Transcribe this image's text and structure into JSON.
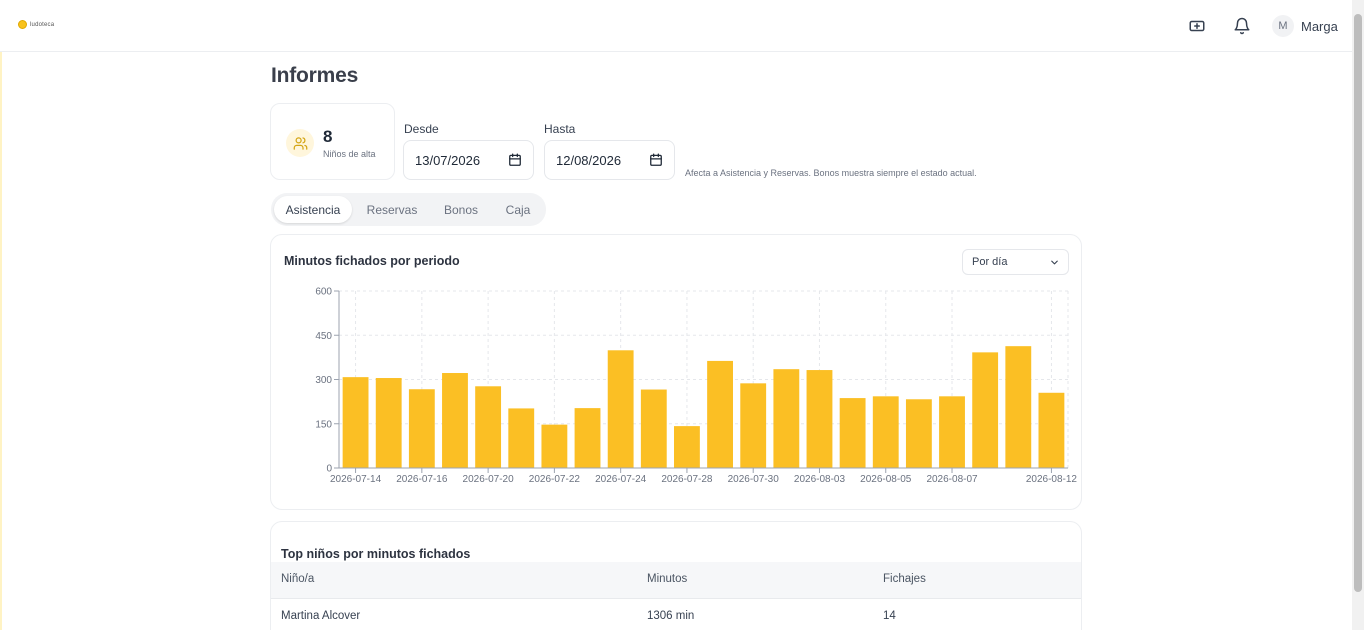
{
  "app": {
    "logo_text": "ludoteca",
    "user_initial": "M",
    "user_name": "Marga"
  },
  "page": {
    "title": "Informes"
  },
  "stat": {
    "value": "8",
    "label": "Niños de alta"
  },
  "filters": {
    "from_label": "Desde",
    "from_value": "13/07/2026",
    "to_label": "Hasta",
    "to_value": "12/08/2026",
    "hint": "Afecta a Asistencia y Reservas. Bonos muestra siempre el estado actual."
  },
  "tabs": [
    {
      "label": "Asistencia",
      "active": true
    },
    {
      "label": "Reservas",
      "active": false
    },
    {
      "label": "Bonos",
      "active": false
    },
    {
      "label": "Caja",
      "active": false
    }
  ],
  "chart_card": {
    "title": "Minutos fichados por periodo",
    "period_select": "Por día"
  },
  "chart_data": {
    "type": "bar",
    "title": "Minutos fichados por periodo",
    "xlabel": "",
    "ylabel": "",
    "ylim": [
      0,
      600
    ],
    "yticks": [
      0,
      150,
      300,
      450,
      600
    ],
    "grid": true,
    "color": "#fbbf24",
    "categories": [
      "2026-07-14",
      "2026-07-15",
      "2026-07-16",
      "2026-07-17",
      "2026-07-20",
      "2026-07-21",
      "2026-07-22",
      "2026-07-23",
      "2026-07-24",
      "2026-07-27",
      "2026-07-28",
      "2026-07-29",
      "2026-07-30",
      "2026-07-31",
      "2026-08-03",
      "2026-08-04",
      "2026-08-05",
      "2026-08-06",
      "2026-08-07",
      "2026-08-10",
      "2026-08-11",
      "2026-08-12"
    ],
    "tick_labels": [
      "2026-07-14",
      "2026-07-16",
      "2026-07-20",
      "2026-07-22",
      "2026-07-24",
      "2026-07-28",
      "2026-07-30",
      "2026-08-03",
      "2026-08-05",
      "2026-08-07",
      "2026-08-12"
    ],
    "values": [
      308,
      305,
      267,
      322,
      277,
      202,
      147,
      203,
      399,
      266,
      142,
      363,
      287,
      335,
      332,
      237,
      243,
      233,
      243,
      392,
      413,
      255
    ]
  },
  "table": {
    "title": "Top niños por minutos fichados",
    "columns": [
      "Niño/a",
      "Minutos",
      "Fichajes"
    ],
    "rows": [
      [
        "Martina Alcover",
        "1306 min",
        "14"
      ]
    ]
  }
}
